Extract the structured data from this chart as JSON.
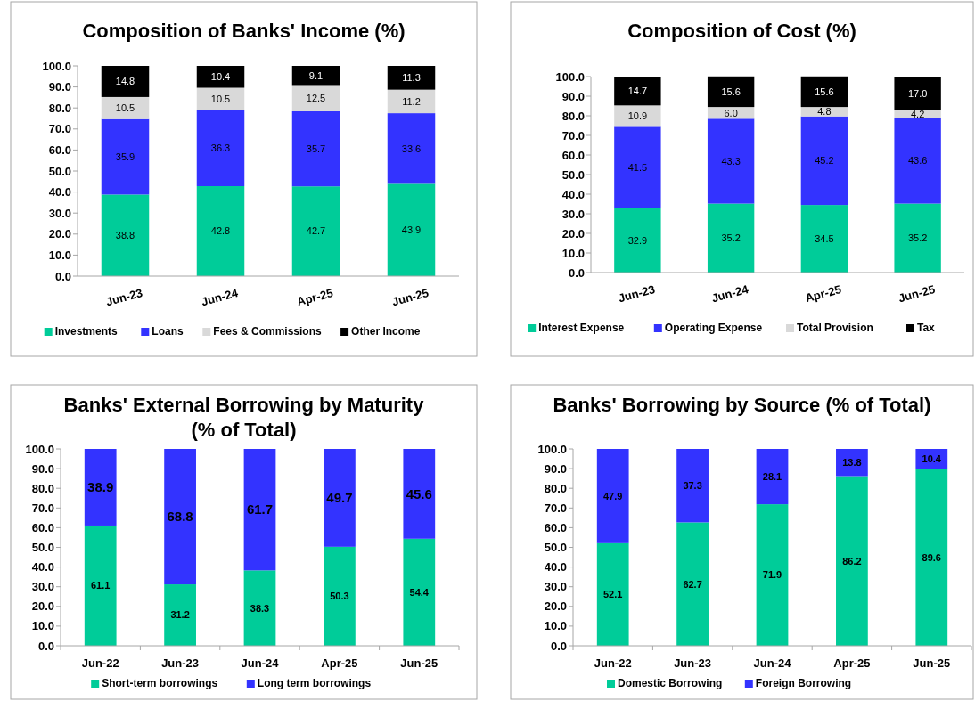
{
  "chart_data": [
    {
      "type": "bar",
      "stacked": true,
      "title": "Composition of Banks' Income (%)",
      "categories": [
        "Jun-23",
        "Jun-24",
        "Apr-25",
        "Jun-25"
      ],
      "ylim": [
        0,
        100
      ],
      "yticks": [
        {
          "value": 0,
          "label": "0.0"
        },
        {
          "value": 10,
          "label": "10.0"
        },
        {
          "value": 20,
          "label": "20.0"
        },
        {
          "value": 30,
          "label": "30.0"
        },
        {
          "value": 40,
          "label": "40.0"
        },
        {
          "value": 50,
          "label": "50.0"
        },
        {
          "value": 60,
          "label": "60.0"
        },
        {
          "value": 70,
          "label": "70.0"
        },
        {
          "value": 80,
          "label": "80.0"
        },
        {
          "value": 90,
          "label": "90.0"
        },
        {
          "value": 100,
          "label": "100.0"
        }
      ],
      "grid": false,
      "legend": "bottom",
      "series": [
        {
          "name": "Investments",
          "color": "#00cc99",
          "values": [
            38.8,
            42.8,
            42.7,
            43.9
          ],
          "value_labels": [
            "38.8",
            "42.8",
            "42.7",
            "43.9"
          ]
        },
        {
          "name": "Loans",
          "color": "#3333ff",
          "values": [
            35.9,
            36.3,
            35.7,
            33.6
          ],
          "value_labels": [
            "35.9",
            "36.3",
            "35.7",
            "33.6"
          ]
        },
        {
          "name": "Fees & Commissions",
          "color": "#d9d9d9",
          "values": [
            10.5,
            10.5,
            12.5,
            11.2
          ],
          "value_labels": [
            "10.5",
            "10.5",
            "12.5",
            "11.2"
          ]
        },
        {
          "name": "Other Income",
          "color": "#000000",
          "values": [
            14.8,
            10.4,
            9.1,
            11.3
          ],
          "value_labels": [
            "14.8",
            "10.4",
            "9.1",
            "11.3"
          ]
        }
      ]
    },
    {
      "type": "bar",
      "stacked": true,
      "title": "Composition of Cost (%)",
      "categories": [
        "Jun-23",
        "Jun-24",
        "Apr-25",
        "Jun-25"
      ],
      "ylim": [
        0,
        100
      ],
      "yticks": [
        {
          "value": 0,
          "label": "0.0"
        },
        {
          "value": 10,
          "label": "10.0"
        },
        {
          "value": 20,
          "label": "20.0"
        },
        {
          "value": 30,
          "label": "30.0"
        },
        {
          "value": 40,
          "label": "40.0"
        },
        {
          "value": 50,
          "label": "50.0"
        },
        {
          "value": 60,
          "label": "60.0"
        },
        {
          "value": 70,
          "label": "70.0"
        },
        {
          "value": 80,
          "label": "80.0"
        },
        {
          "value": 90,
          "label": "90.0"
        },
        {
          "value": 100,
          "label": "100.0"
        }
      ],
      "grid": false,
      "legend": "bottom",
      "series": [
        {
          "name": "Interest Expense",
          "color": "#00cc99",
          "values": [
            32.9,
            35.2,
            34.5,
            35.2
          ],
          "value_labels": [
            "32.9",
            "35.2",
            "34.5",
            "35.2"
          ]
        },
        {
          "name": "Operating Expense",
          "color": "#3333ff",
          "values": [
            41.5,
            43.3,
            45.2,
            43.6
          ],
          "value_labels": [
            "41.5",
            "43.3",
            "45.2",
            "43.6"
          ]
        },
        {
          "name": "Total Provision",
          "color": "#d9d9d9",
          "values": [
            10.9,
            6.0,
            4.8,
            4.2
          ],
          "value_labels": [
            "10.9",
            "6.0",
            "4.8",
            "4.2"
          ]
        },
        {
          "name": "Tax",
          "color": "#000000",
          "values": [
            14.7,
            15.6,
            15.6,
            17.0
          ],
          "value_labels": [
            "14.7",
            "15.6",
            "15.6",
            "17.0"
          ]
        }
      ]
    },
    {
      "type": "bar",
      "stacked": true,
      "title": "Banks' External Borrowing by Maturity (% of Total)",
      "categories": [
        "Jun-22",
        "Jun-23",
        "Jun-24",
        "Apr-25",
        "Jun-25"
      ],
      "ylim": [
        0,
        100
      ],
      "yticks": [
        {
          "value": 0,
          "label": "0.0"
        },
        {
          "value": 10,
          "label": "10.0"
        },
        {
          "value": 20,
          "label": "20.0"
        },
        {
          "value": 30,
          "label": "30.0"
        },
        {
          "value": 40,
          "label": "40.0"
        },
        {
          "value": 50,
          "label": "50.0"
        },
        {
          "value": 60,
          "label": "60.0"
        },
        {
          "value": 70,
          "label": "70.0"
        },
        {
          "value": 80,
          "label": "80.0"
        },
        {
          "value": 90,
          "label": "90.0"
        },
        {
          "value": 100,
          "label": "100.0"
        }
      ],
      "grid": false,
      "legend": "bottom",
      "series": [
        {
          "name": "Short-term borrowings",
          "color": "#00cc99",
          "values": [
            61.1,
            31.2,
            38.3,
            50.3,
            54.4
          ],
          "value_labels": [
            "61.1",
            "31.2",
            "38.3",
            "50.3",
            "54.4"
          ]
        },
        {
          "name": "Long term borrowings",
          "color": "#3333ff",
          "values": [
            38.9,
            68.8,
            61.7,
            49.7,
            45.6
          ],
          "value_labels": [
            "38.9",
            "68.8",
            "61.7",
            "49.7",
            "45.6"
          ]
        }
      ]
    },
    {
      "type": "bar",
      "stacked": true,
      "title": "Banks' Borrowing by Source (% of Total)",
      "categories": [
        "Jun-22",
        "Jun-23",
        "Jun-24",
        "Apr-25",
        "Jun-25"
      ],
      "ylim": [
        0,
        100
      ],
      "yticks": [
        {
          "value": 0,
          "label": "0.0"
        },
        {
          "value": 10,
          "label": "10.0"
        },
        {
          "value": 20,
          "label": "20.0"
        },
        {
          "value": 30,
          "label": "30.0"
        },
        {
          "value": 40,
          "label": "40.0"
        },
        {
          "value": 50,
          "label": "50.0"
        },
        {
          "value": 60,
          "label": "60.0"
        },
        {
          "value": 70,
          "label": "70.0"
        },
        {
          "value": 80,
          "label": "80.0"
        },
        {
          "value": 90,
          "label": "90.0"
        },
        {
          "value": 100,
          "label": "100.0"
        }
      ],
      "grid": false,
      "legend": "bottom",
      "series": [
        {
          "name": "Domestic Borrowing",
          "color": "#00cc99",
          "values": [
            52.1,
            62.7,
            71.9,
            86.2,
            89.6
          ],
          "value_labels": [
            "52.1",
            "62.7",
            "71.9",
            "86.2",
            "89.6"
          ]
        },
        {
          "name": "Foreign Borrowing",
          "color": "#3333ff",
          "values": [
            47.9,
            37.3,
            28.1,
            13.8,
            10.4
          ],
          "value_labels": [
            "47.9",
            "37.3",
            "28.1",
            "13.8",
            "10.4"
          ]
        }
      ]
    }
  ]
}
